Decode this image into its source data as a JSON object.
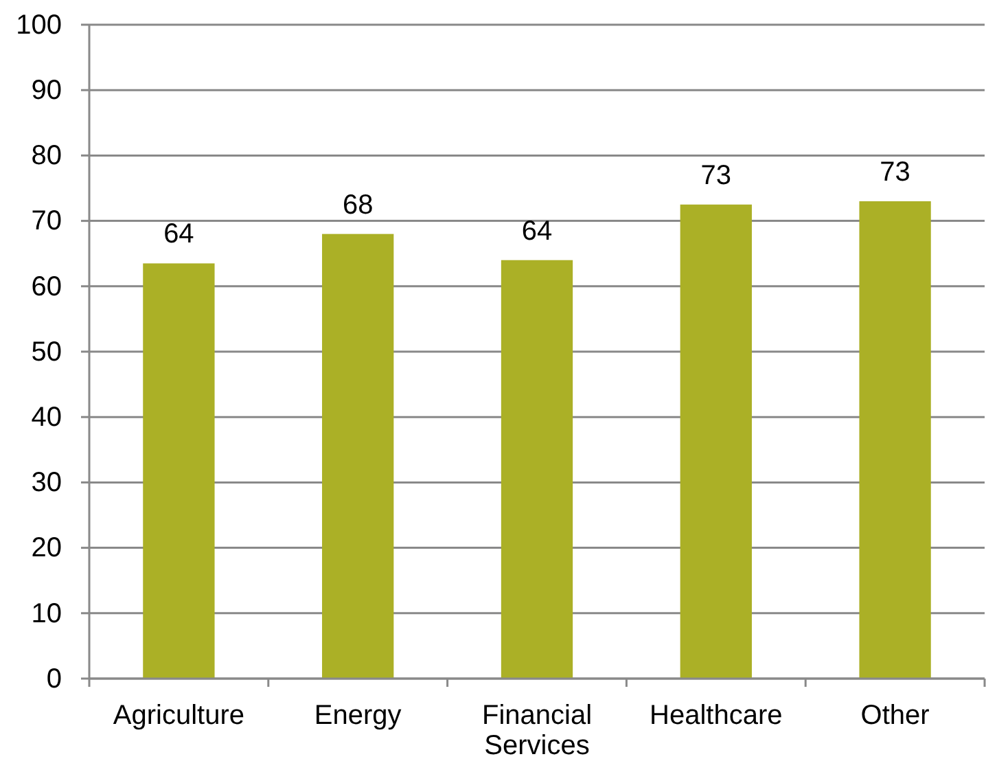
{
  "chart_data": {
    "type": "bar",
    "categories": [
      "Agriculture",
      "Energy",
      "Financial Services",
      "Healthcare",
      "Other"
    ],
    "values": [
      63.5,
      68,
      64,
      72.5,
      73
    ],
    "value_labels": [
      "64",
      "68",
      "64",
      "73",
      "73"
    ],
    "color": "#abb026",
    "ylim": [
      0,
      100
    ],
    "yticks": [
      0,
      10,
      20,
      30,
      40,
      50,
      60,
      70,
      80,
      90,
      100
    ],
    "grid": "y"
  }
}
